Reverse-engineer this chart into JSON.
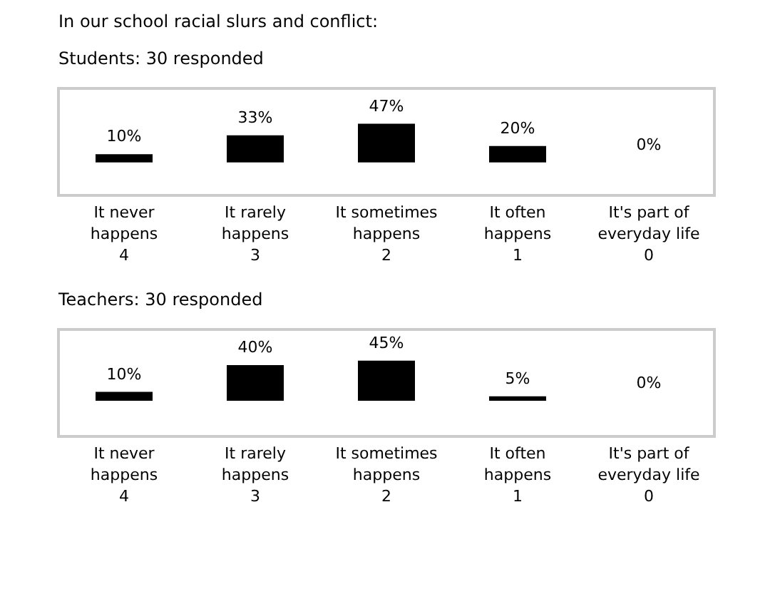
{
  "chart_data": [
    {
      "type": "bar",
      "title": "In our school racial slurs and conflict:",
      "subtitle": "Students: 30 responded",
      "categories": [
        "It never\nhappens\n4",
        "It rarely\nhappens\n3",
        "It sometimes\nhappens\n2",
        "It often\nhappens\n1",
        "It's part of\neveryday life\n0"
      ],
      "values": [
        10,
        33,
        47,
        20,
        0
      ],
      "value_labels": [
        "10%",
        "33%",
        "47%",
        "20%",
        "0%"
      ],
      "color": "#000000"
    },
    {
      "type": "bar",
      "title": "Teachers: 30 responded",
      "categories": [
        "It never\nhappens\n4",
        "It rarely\nhappens\n3",
        "It sometimes\nhappens\n2",
        "It often\nhappens\n1",
        "It's part of\neveryday life\n0"
      ],
      "values": [
        10,
        40,
        45,
        5,
        0
      ],
      "value_labels": [
        "10%",
        "40%",
        "45%",
        "5%",
        "0%"
      ],
      "color": "#000000"
    }
  ]
}
